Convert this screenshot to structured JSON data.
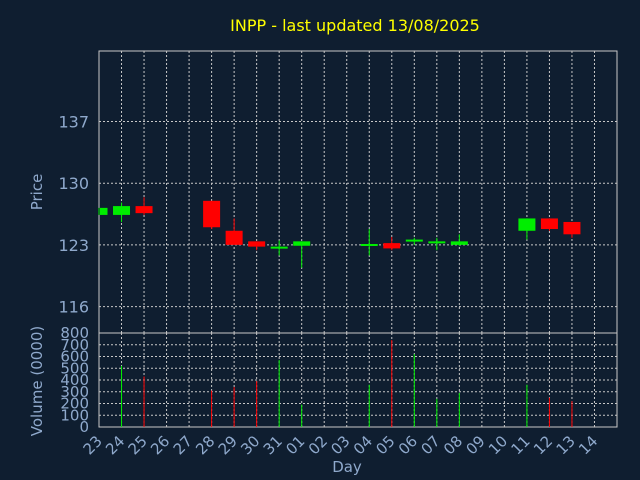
{
  "chart_data": {
    "type": "candlestick",
    "title": "INPP - last updated 13/08/2025",
    "xlabel": "Day",
    "price_panel": {
      "ylabel": "Price",
      "ylim": [
        113,
        145
      ],
      "yticks": [
        116,
        123,
        130,
        137
      ],
      "grid": true
    },
    "volume_panel": {
      "ylabel": "Volume (0000)",
      "ylim": [
        0,
        800
      ],
      "yticks": [
        0,
        100,
        200,
        300,
        400,
        500,
        600,
        700,
        800
      ],
      "grid": true
    },
    "x_labels": [
      "23",
      "24",
      "25",
      "26",
      "27",
      "28",
      "29",
      "30",
      "31",
      "01",
      "02",
      "03",
      "04",
      "05",
      "06",
      "07",
      "08",
      "09",
      "10",
      "11",
      "12",
      "13",
      "14"
    ],
    "candles": [
      {
        "x": 0,
        "open": 126.4,
        "high": 127.2,
        "low": 126.4,
        "close": 127.2,
        "volume": 0
      },
      {
        "x": 1,
        "open": 126.4,
        "high": 127.8,
        "low": 125.6,
        "close": 127.4,
        "volume": 520
      },
      {
        "x": 2,
        "open": 127.4,
        "high": 128.4,
        "low": 126.4,
        "close": 126.6,
        "volume": 430
      },
      {
        "x": 5,
        "open": 128.0,
        "high": 128.0,
        "low": 124.8,
        "close": 125.0,
        "volume": 310
      },
      {
        "x": 6,
        "open": 124.6,
        "high": 126.0,
        "low": 123.0,
        "close": 123.0,
        "volume": 340
      },
      {
        "x": 7,
        "open": 123.4,
        "high": 123.4,
        "low": 122.4,
        "close": 122.8,
        "volume": 390
      },
      {
        "x": 8,
        "open": 122.6,
        "high": 123.5,
        "low": 121.8,
        "close": 122.8,
        "volume": 570
      },
      {
        "x": 9,
        "open": 122.9,
        "high": 123.4,
        "low": 120.4,
        "close": 123.4,
        "volume": 190
      },
      {
        "x": 12,
        "open": 122.9,
        "high": 124.8,
        "low": 121.8,
        "close": 123.1,
        "volume": 360
      },
      {
        "x": 13,
        "open": 123.2,
        "high": 123.9,
        "low": 122.4,
        "close": 122.6,
        "volume": 740
      },
      {
        "x": 14,
        "open": 123.4,
        "high": 123.8,
        "low": 123.0,
        "close": 123.6,
        "volume": 620
      },
      {
        "x": 15,
        "open": 123.2,
        "high": 123.8,
        "low": 122.4,
        "close": 123.4,
        "volume": 240
      },
      {
        "x": 16,
        "open": 123.0,
        "high": 124.2,
        "low": 122.9,
        "close": 123.4,
        "volume": 290
      },
      {
        "x": 19,
        "open": 124.6,
        "high": 126.0,
        "low": 123.6,
        "close": 126.0,
        "volume": 360
      },
      {
        "x": 20,
        "open": 126.0,
        "high": 126.0,
        "low": 124.6,
        "close": 124.8,
        "volume": 250
      },
      {
        "x": 21,
        "open": 125.6,
        "high": 125.6,
        "low": 123.8,
        "close": 124.2,
        "volume": 220
      }
    ]
  },
  "colors": {
    "background": "#0f1e30",
    "title": "#ffff00",
    "axis_text": "#8fa9cc",
    "grid": "#c8c8c8",
    "frame": "#c8c8c8",
    "up": "#00ee00",
    "down": "#ff0000"
  }
}
